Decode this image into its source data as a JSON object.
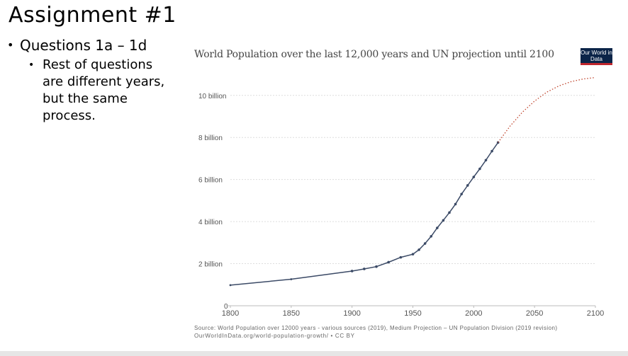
{
  "slide": {
    "title": "Assignment #1",
    "bullet_1": "Questions 1a – 1d",
    "bullet_2": "Rest of questions are different years, but the same process."
  },
  "logo": {
    "text": "Our World in Data"
  },
  "colors": {
    "historical": "#3b4a66",
    "projection": "#c0452d",
    "grid": "#dddddd",
    "text": "#555555"
  },
  "chart_data": {
    "type": "line",
    "title": "World Population over the last 12,000 years and UN projection until 2100",
    "source": "Source: World Population over 12000 years - various sources (2019), Medium Projection – UN Population Division (2019 revision)",
    "source_url": "OurWorldInData.org/world-population-growth/ • CC BY",
    "xlim": [
      1800,
      2100
    ],
    "ylim": [
      0,
      10.9
    ],
    "grid": true,
    "x_ticks": [
      1800,
      1850,
      1900,
      1950,
      2000,
      2050,
      2100
    ],
    "y_ticks": [
      {
        "value": 0,
        "label": "0"
      },
      {
        "value": 2,
        "label": "2 billion"
      },
      {
        "value": 4,
        "label": "4 billion"
      },
      {
        "value": 6,
        "label": "6 billion"
      },
      {
        "value": 8,
        "label": "8 billion"
      },
      {
        "value": 10,
        "label": "10 billion"
      }
    ],
    "series": [
      {
        "style": "historical",
        "x": [
          1800,
          1850,
          1900,
          1910,
          1920,
          1930,
          1940,
          1950,
          1955,
          1960,
          1965,
          1970,
          1975,
          1980,
          1985,
          1990,
          1995,
          2000,
          2005,
          2010,
          2015,
          2020
        ],
        "y": [
          0.98,
          1.26,
          1.65,
          1.75,
          1.86,
          2.07,
          2.3,
          2.45,
          2.66,
          2.96,
          3.3,
          3.7,
          4.06,
          4.43,
          4.83,
          5.31,
          5.72,
          6.12,
          6.51,
          6.92,
          7.35,
          7.76
        ]
      },
      {
        "style": "projection",
        "x": [
          2020,
          2030,
          2040,
          2050,
          2060,
          2070,
          2080,
          2090,
          2100
        ],
        "y": [
          7.76,
          8.55,
          9.2,
          9.73,
          10.15,
          10.45,
          10.65,
          10.78,
          10.85
        ]
      }
    ]
  }
}
